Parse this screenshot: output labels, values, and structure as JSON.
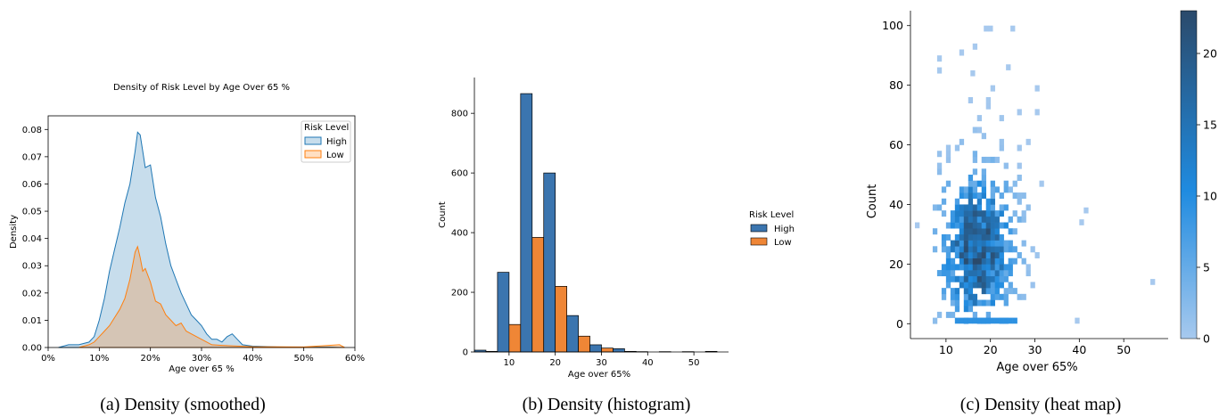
{
  "colors": {
    "high": "#1f77b4",
    "low": "#ff7f0e",
    "hex_dark": "#2b4a6b",
    "hex_light": "#a7c9ee"
  },
  "chart_data": [
    {
      "type": "area",
      "title": "Density of Risk Level by Age Over 65 %",
      "xlabel": "Age over 65 %",
      "ylabel": "Density",
      "caption": "(a) Density (smoothed)",
      "xlim": [
        0,
        60
      ],
      "ylim": [
        0,
        0.085
      ],
      "xticks": [
        "0%",
        "10%",
        "20%",
        "30%",
        "40%",
        "50%",
        "60%"
      ],
      "yticks": [
        "0.00",
        "0.01",
        "0.02",
        "0.03",
        "0.04",
        "0.05",
        "0.06",
        "0.07",
        "0.08"
      ],
      "legend": {
        "title": "Risk Level",
        "position": "top-right",
        "entries": [
          "High",
          "Low"
        ]
      },
      "series": [
        {
          "name": "High",
          "x": [
            2,
            4,
            6,
            8,
            9,
            10,
            11,
            12,
            13,
            14,
            15,
            16,
            17,
            17.5,
            18,
            18.5,
            19,
            20,
            21,
            22,
            23,
            24,
            25,
            26,
            27,
            28,
            29,
            30,
            31,
            32,
            33,
            34,
            35,
            36,
            37,
            38,
            40,
            45,
            50,
            55,
            58
          ],
          "y": [
            0.0,
            0.001,
            0.001,
            0.002,
            0.004,
            0.01,
            0.018,
            0.028,
            0.036,
            0.044,
            0.053,
            0.06,
            0.072,
            0.079,
            0.078,
            0.072,
            0.066,
            0.067,
            0.055,
            0.048,
            0.038,
            0.03,
            0.025,
            0.02,
            0.016,
            0.012,
            0.01,
            0.008,
            0.005,
            0.003,
            0.003,
            0.002,
            0.004,
            0.005,
            0.003,
            0.001,
            0.0005,
            0.0002,
            0.0001,
            0.0002,
            0.0
          ]
        },
        {
          "name": "Low",
          "x": [
            6,
            8,
            9,
            10,
            11,
            12,
            13,
            14,
            15,
            16,
            17,
            17.5,
            18,
            18.5,
            19,
            20,
            21,
            22,
            23,
            24,
            25,
            26,
            27,
            28,
            30,
            32,
            34,
            40,
            50,
            57,
            58
          ],
          "y": [
            0.0,
            0.001,
            0.002,
            0.004,
            0.006,
            0.008,
            0.011,
            0.014,
            0.018,
            0.025,
            0.035,
            0.037,
            0.033,
            0.028,
            0.029,
            0.024,
            0.017,
            0.016,
            0.012,
            0.01,
            0.008,
            0.009,
            0.006,
            0.005,
            0.003,
            0.001,
            0.0008,
            0.0003,
            0.0002,
            0.001,
            0.0
          ]
        }
      ]
    },
    {
      "type": "bar",
      "xlabel": "Age over 65%",
      "ylabel": "Count",
      "caption": "(b) Density (histogram)",
      "xlim": [
        2.5,
        57.5
      ],
      "ylim": [
        0,
        920
      ],
      "xticks": [
        "10",
        "20",
        "30",
        "40",
        "50"
      ],
      "yticks": [
        "0",
        "200",
        "400",
        "600",
        "800"
      ],
      "legend": {
        "title": "Risk Level",
        "position": "right outside",
        "entries": [
          "High",
          "Low"
        ]
      },
      "categories": [
        "5",
        "10",
        "15",
        "20",
        "25",
        "30",
        "35",
        "40",
        "45",
        "50",
        "55"
      ],
      "series": [
        {
          "name": "High",
          "values": [
            6,
            267,
            866,
            600,
            122,
            24,
            11,
            1,
            1,
            1,
            2
          ]
        },
        {
          "name": "Low",
          "values": [
            2,
            92,
            384,
            220,
            53,
            13,
            2,
            0,
            0,
            0,
            0
          ]
        }
      ]
    },
    {
      "type": "heatmap",
      "xlabel": "Age over 65%",
      "ylabel": "Count",
      "caption": "(c) Density (heat map)",
      "xlim": [
        2,
        60
      ],
      "ylim": [
        -5,
        105
      ],
      "xticks": [
        "10",
        "20",
        "30",
        "40",
        "50"
      ],
      "yticks": [
        "0",
        "20",
        "40",
        "60",
        "80",
        "100"
      ],
      "colorbar": {
        "min": 0,
        "max": 23,
        "ticks": [
          "0",
          "5",
          "10",
          "15",
          "20"
        ]
      },
      "hotspot": {
        "x": 17,
        "y": 25
      },
      "outliers": [
        [
          3.5,
          33
        ],
        [
          39.5,
          1
        ],
        [
          56.5,
          14
        ],
        [
          40.5,
          34
        ],
        [
          41.5,
          38
        ],
        [
          19,
          99
        ],
        [
          20,
          99
        ],
        [
          25,
          99
        ],
        [
          24,
          86
        ],
        [
          16,
          84
        ]
      ]
    }
  ]
}
